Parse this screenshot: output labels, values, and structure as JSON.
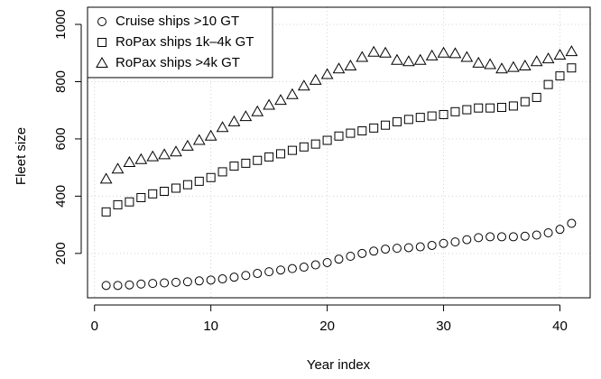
{
  "chart_data": {
    "type": "scatter",
    "x_label": "Year index",
    "y_label": "Fleet size",
    "x": [
      1,
      2,
      3,
      4,
      5,
      6,
      7,
      8,
      9,
      10,
      11,
      12,
      13,
      14,
      15,
      16,
      17,
      18,
      19,
      20,
      21,
      22,
      23,
      24,
      25,
      26,
      27,
      28,
      29,
      30,
      31,
      32,
      33,
      34,
      35,
      36,
      37,
      38,
      39,
      40,
      41
    ],
    "series": [
      {
        "name": "Cruise ships >10 GT",
        "marker": "circle",
        "color": "#000000",
        "values": [
          88,
          88,
          90,
          93,
          95,
          97,
          99,
          101,
          104,
          107,
          111,
          117,
          123,
          130,
          136,
          142,
          147,
          152,
          160,
          168,
          180,
          190,
          200,
          208,
          215,
          218,
          220,
          223,
          228,
          235,
          240,
          248,
          255,
          258,
          258,
          258,
          260,
          264,
          272,
          284,
          305
        ]
      },
      {
        "name": "RoPax ships 1k–4k GT",
        "marker": "square",
        "color": "#000000",
        "values": [
          345,
          370,
          380,
          395,
          408,
          417,
          428,
          440,
          452,
          465,
          485,
          505,
          515,
          525,
          537,
          548,
          560,
          572,
          582,
          595,
          610,
          620,
          628,
          638,
          648,
          660,
          668,
          675,
          680,
          685,
          695,
          702,
          708,
          708,
          710,
          715,
          730,
          745,
          790,
          820,
          848
        ]
      },
      {
        "name": "RoPax ships >4k GT",
        "marker": "triangle",
        "color": "#000000",
        "values": [
          460,
          495,
          518,
          528,
          538,
          545,
          555,
          575,
          595,
          610,
          640,
          660,
          678,
          695,
          718,
          735,
          755,
          785,
          805,
          825,
          845,
          855,
          885,
          903,
          900,
          875,
          870,
          875,
          890,
          900,
          898,
          885,
          865,
          860,
          845,
          850,
          855,
          870,
          880,
          893,
          905
        ]
      }
    ],
    "xlim": [
      -0.6,
      42.6
    ],
    "ylim": [
      45,
      1060
    ],
    "xticks": [
      0,
      10,
      20,
      30,
      40
    ],
    "yticks": [
      200,
      400,
      600,
      800,
      1000
    ],
    "grid": true,
    "legend": "topleft"
  }
}
